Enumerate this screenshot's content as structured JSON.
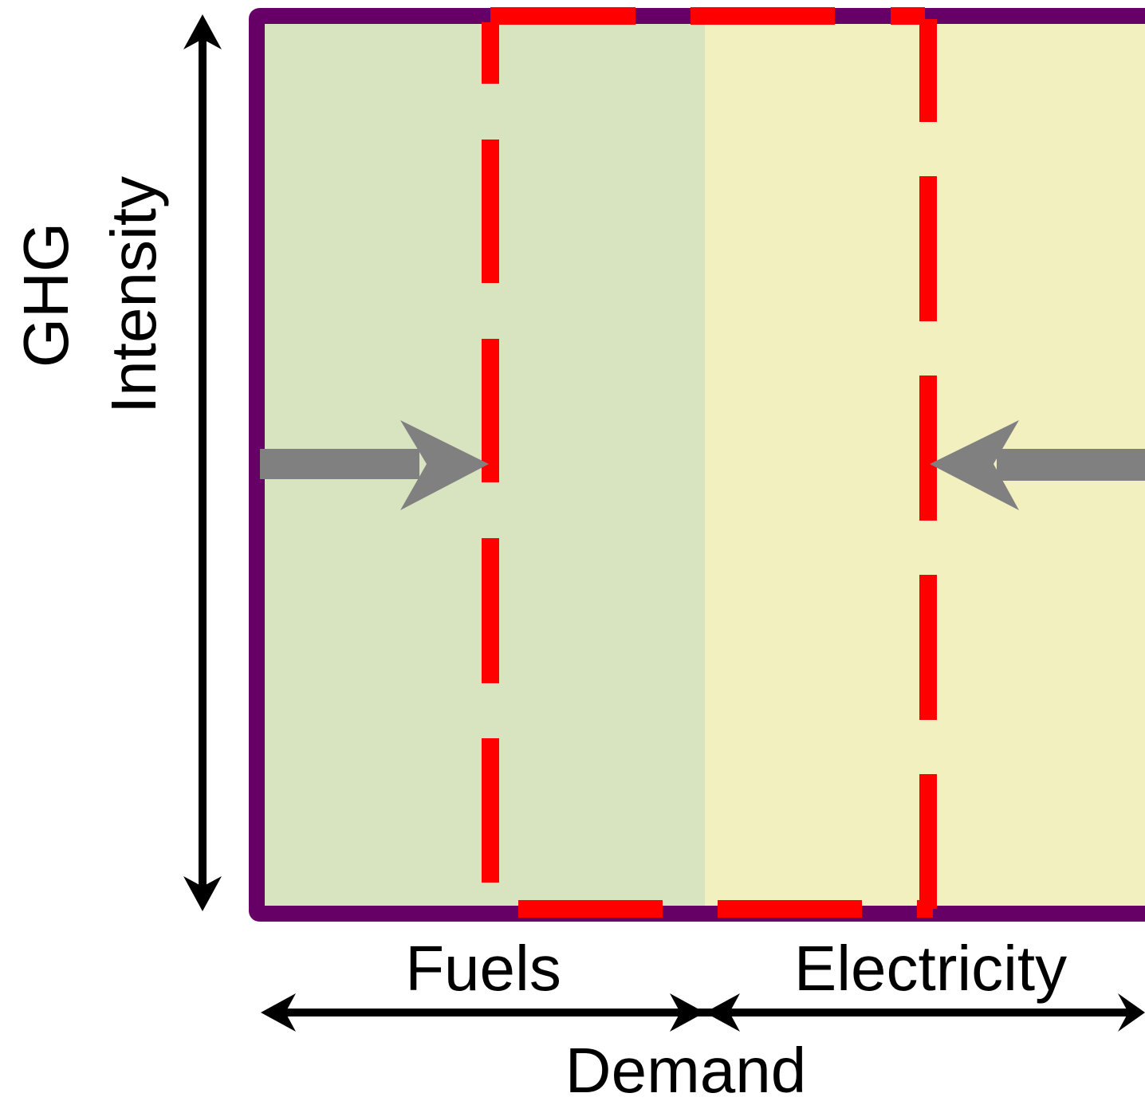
{
  "labels": {
    "y_axis_line1": "GHG",
    "y_axis_line2": "Intensity",
    "fuels": "Fuels",
    "electricity": "Electricity",
    "x_axis": "Demand"
  },
  "colors": {
    "frame": "#660066",
    "fuels_region": "#d8e4bf",
    "electricity_region": "#f2f0bf",
    "dashed_boundary": "#ff0000",
    "shift_arrows": "#808080",
    "axis_arrows": "#000000"
  }
}
